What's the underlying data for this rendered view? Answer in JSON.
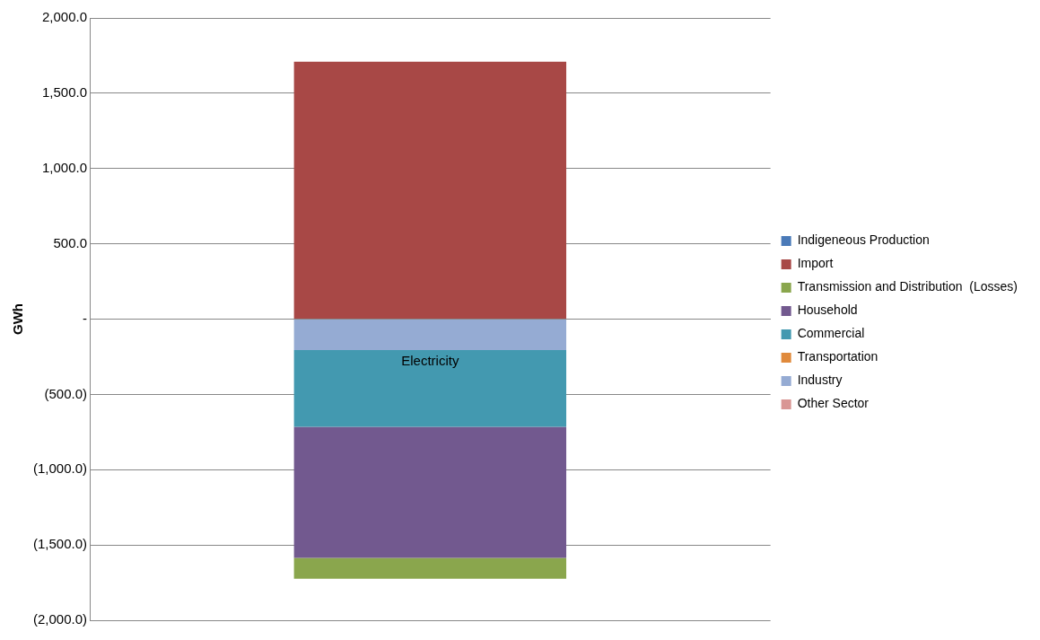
{
  "chart_data": {
    "type": "bar",
    "stacked": true,
    "ylabel": "GWh",
    "categories": [
      "Electricity"
    ],
    "series": [
      {
        "name": "Other Sector",
        "color": "#d99694",
        "values": [
          0
        ]
      },
      {
        "name": "Industry",
        "color": "#95abd3",
        "values": [
          -205
        ]
      },
      {
        "name": "Transportation",
        "color": "#e08a3c",
        "values": [
          0
        ]
      },
      {
        "name": "Commercial",
        "color": "#4399b0",
        "values": [
          -510
        ]
      },
      {
        "name": "Household",
        "color": "#72598f",
        "values": [
          -870
        ]
      },
      {
        "name": "Transmission and Distribution  (Losses)",
        "color": "#8aa64d",
        "values": [
          -140
        ]
      },
      {
        "name": "Import",
        "color": "#a84846",
        "values": [
          1710
        ]
      },
      {
        "name": "Indigeneous Production",
        "color": "#4a7ab8",
        "values": [
          0
        ]
      }
    ],
    "ylim": [
      -2000,
      2000
    ],
    "yticks": [
      {
        "value": -2000,
        "label": "(2,000.0)"
      },
      {
        "value": -1500,
        "label": "(1,500.0)"
      },
      {
        "value": -1000,
        "label": "(1,000.0)"
      },
      {
        "value": -500,
        "label": "(500.0)"
      },
      {
        "value": 0,
        "label": "-"
      },
      {
        "value": 500,
        "label": "500.0"
      },
      {
        "value": 1000,
        "label": "1,000.0"
      },
      {
        "value": 1500,
        "label": "1,500.0"
      },
      {
        "value": 2000,
        "label": "2,000.0"
      }
    ],
    "grid": "y",
    "legend": "right"
  }
}
